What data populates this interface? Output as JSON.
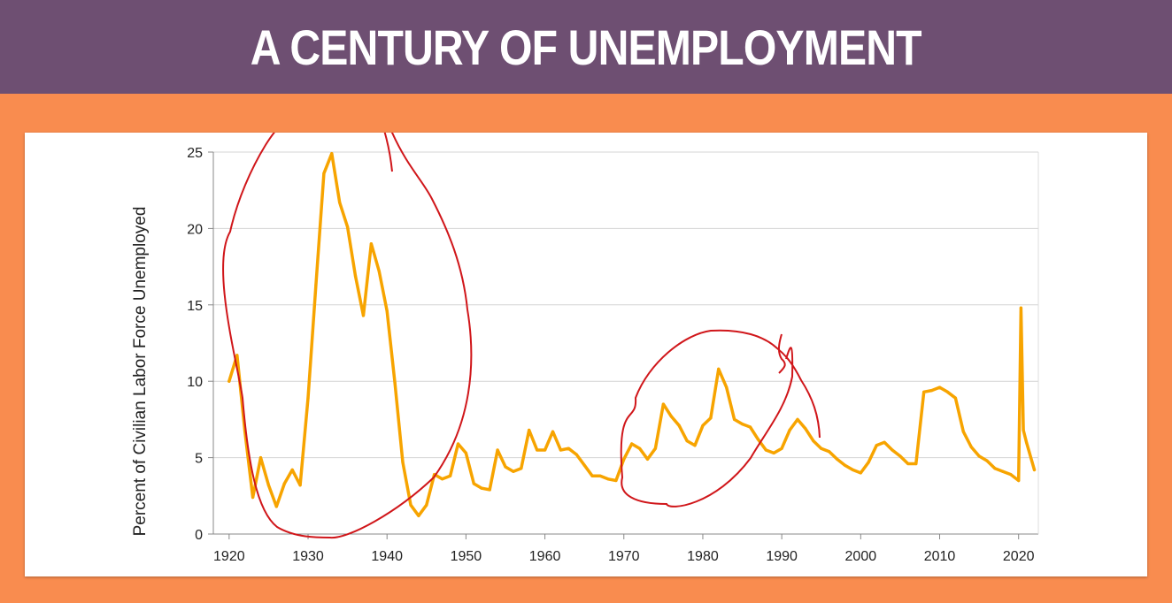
{
  "header": {
    "title": "A CENTURY OF UNEMPLOYMENT"
  },
  "colors": {
    "banner": "#6e4f72",
    "background": "#f98c4f",
    "series": "#f7a400",
    "annotation": "#d0161a"
  },
  "chart_data": {
    "type": "line",
    "title": "",
    "xlabel": "",
    "ylabel": "Percent of Civilian Labor Force Unemployed",
    "xlim": [
      1918,
      2022.5
    ],
    "ylim": [
      0,
      25
    ],
    "xticks": [
      "1920",
      "1930",
      "1940",
      "1950",
      "1960",
      "1970",
      "1980",
      "1990",
      "2000",
      "2010",
      "2020"
    ],
    "yticks": [
      "0",
      "5",
      "10",
      "15",
      "20",
      "25"
    ],
    "grid": "horizontal",
    "legend": "none",
    "series": [
      {
        "x": [
          1920,
          1921,
          1922,
          1923,
          1924,
          1925,
          1926,
          1927,
          1928,
          1929,
          1930,
          1931,
          1932,
          1933,
          1934,
          1935,
          1936,
          1937,
          1938,
          1939,
          1940,
          1941,
          1942,
          1943,
          1944,
          1945,
          1946,
          1947,
          1948,
          1949,
          1950,
          1951,
          1952,
          1953,
          1954,
          1955,
          1956,
          1957,
          1958,
          1959,
          1960,
          1961,
          1962,
          1963,
          1964,
          1965,
          1966,
          1967,
          1968,
          1969,
          1970,
          1971,
          1972,
          1973,
          1974,
          1975,
          1976,
          1977,
          1978,
          1979,
          1980,
          1981,
          1982,
          1983,
          1984,
          1985,
          1986,
          1987,
          1988,
          1989,
          1990,
          1991,
          1992,
          1993,
          1994,
          1995,
          1996,
          1997,
          1998,
          1999,
          2000,
          2001,
          2002,
          2003,
          2004,
          2005,
          2006,
          2007,
          2008,
          2009,
          2010,
          2011,
          2012,
          2013,
          2014,
          2015,
          2016,
          2017,
          2018,
          2019,
          2020,
          2020.3,
          2020.6,
          2021,
          2022
        ],
        "y": [
          10.0,
          11.7,
          6.7,
          2.4,
          5.0,
          3.2,
          1.8,
          3.3,
          4.2,
          3.2,
          8.9,
          16.3,
          23.6,
          24.9,
          21.7,
          20.1,
          16.9,
          14.3,
          19.0,
          17.2,
          14.6,
          9.9,
          4.7,
          1.9,
          1.2,
          1.9,
          3.9,
          3.6,
          3.8,
          5.9,
          5.3,
          3.3,
          3.0,
          2.9,
          5.5,
          4.4,
          4.1,
          4.3,
          6.8,
          5.5,
          5.5,
          6.7,
          5.5,
          5.6,
          5.2,
          4.5,
          3.8,
          3.8,
          3.6,
          3.5,
          4.9,
          5.9,
          5.6,
          4.9,
          5.6,
          8.5,
          7.7,
          7.1,
          6.1,
          5.8,
          7.1,
          7.6,
          10.8,
          9.6,
          7.5,
          7.2,
          7.0,
          6.2,
          5.5,
          5.3,
          5.6,
          6.8,
          7.5,
          6.9,
          6.1,
          5.6,
          5.4,
          4.9,
          4.5,
          4.2,
          4.0,
          4.7,
          5.8,
          6.0,
          5.5,
          5.1,
          4.6,
          4.6,
          9.3,
          9.4,
          9.6,
          9.3,
          8.9,
          6.7,
          5.7,
          5.1,
          4.8,
          4.3,
          4.1,
          3.9,
          3.5,
          14.8,
          6.8,
          6.0,
          4.2
        ]
      }
    ]
  }
}
